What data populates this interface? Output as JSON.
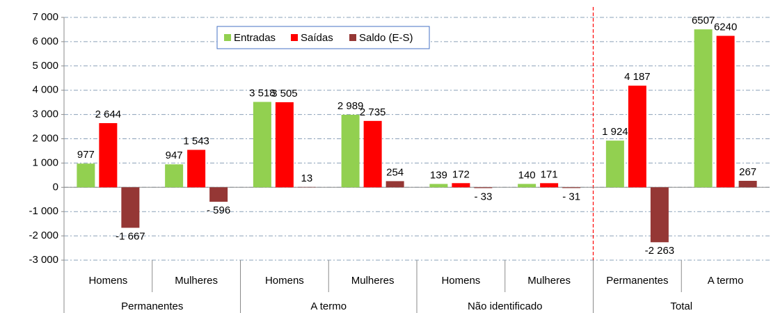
{
  "chart_data": {
    "type": "bar",
    "groups": [
      {
        "name": "Permanentes",
        "categories": [
          "Homens",
          "Mulheres"
        ]
      },
      {
        "name": "A termo",
        "categories": [
          "Homens",
          "Mulheres"
        ]
      },
      {
        "name": "Não identificado",
        "categories": [
          "Homens",
          "Mulheres"
        ]
      },
      {
        "name": "Total",
        "categories": [
          "Permanentes",
          "A termo"
        ]
      }
    ],
    "series": [
      {
        "name": "Entradas",
        "color": "#92d050",
        "values": [
          977,
          947,
          3518,
          2989,
          139,
          140,
          1924,
          6507
        ],
        "value_labels": [
          "977",
          "947",
          "3 518",
          "2 989",
          "139",
          "140",
          "1 924",
          "6507"
        ]
      },
      {
        "name": "Saídas",
        "color": "#ff0000",
        "values": [
          2644,
          1543,
          3505,
          2735,
          172,
          171,
          4187,
          6240
        ],
        "value_labels": [
          "2 644",
          "1 543",
          "3 505",
          "2 735",
          "172",
          "171",
          "4 187",
          "6240"
        ]
      },
      {
        "name": "Saldo (E-S)",
        "color": "#953735",
        "values": [
          -1667,
          -596,
          13,
          254,
          -33,
          -31,
          -2263,
          267
        ],
        "value_labels": [
          "-1 667",
          "- 596",
          "13",
          "254",
          "- 33",
          "- 31",
          "-2 263",
          "267"
        ]
      }
    ],
    "ylim": [
      -3000,
      7000
    ],
    "yticks": [
      {
        "value": -3000,
        "label": "-3 000"
      },
      {
        "value": -2000,
        "label": "-2 000"
      },
      {
        "value": -1000,
        "label": "-1 000"
      },
      0,
      {
        "value": 1000,
        "label": "1 000"
      },
      {
        "value": 2000,
        "label": "2 000"
      },
      {
        "value": 3000,
        "label": "3 000"
      },
      {
        "value": 4000,
        "label": "4 000"
      },
      {
        "value": 5000,
        "label": "5 000"
      },
      {
        "value": 6000,
        "label": "6 000"
      },
      {
        "value": 7000,
        "label": "7 000"
      }
    ],
    "grid": true,
    "legend": "top"
  }
}
